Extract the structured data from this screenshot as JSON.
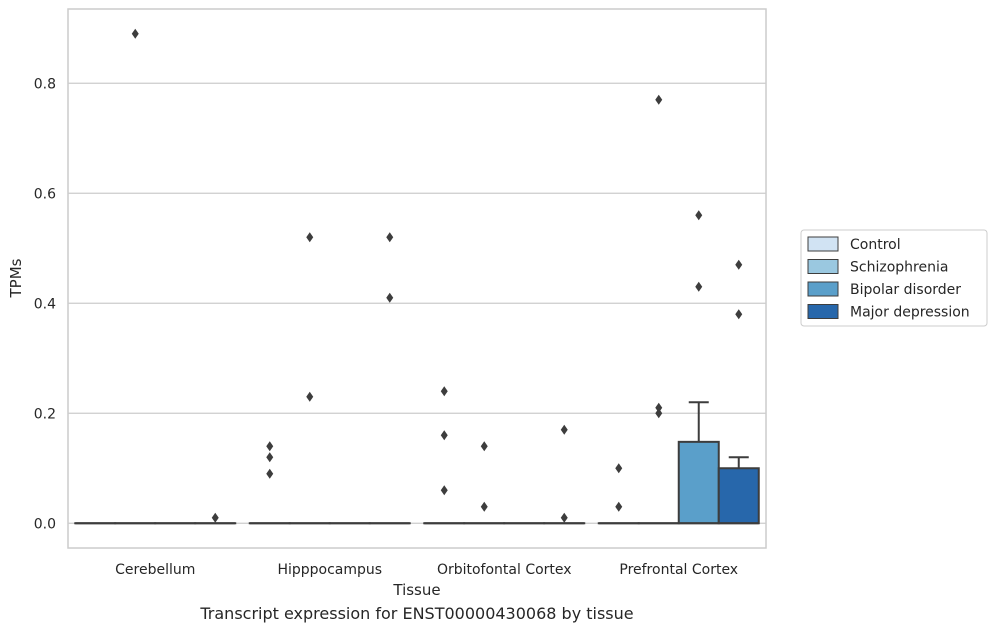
{
  "caption": "Transcript expression for ENST00000430068 by tissue",
  "chart_data": {
    "type": "box",
    "xlabel": "Tissue",
    "ylabel": "TPMs",
    "ylim": [
      -0.045,
      0.935
    ],
    "yticks": [
      0.0,
      0.2,
      0.4,
      0.6,
      0.8
    ],
    "ytick_labels": [
      "0.0",
      "0.2",
      "0.4",
      "0.6",
      "0.8"
    ],
    "grid": true,
    "legend_position": "right",
    "categories": [
      "Cerebellum",
      "Hipppocampus",
      "Orbitofontal Cortex",
      "Prefrontal Cortex"
    ],
    "series": [
      {
        "name": "Control",
        "color": "#d1e3f3",
        "boxes": [
          {
            "q1": 0,
            "median": 0,
            "q3": 0,
            "whisker_low": 0,
            "whisker_high": 0,
            "outliers": []
          },
          {
            "q1": 0,
            "median": 0,
            "q3": 0,
            "whisker_low": 0,
            "whisker_high": 0,
            "outliers": [
              0.09,
              0.12,
              0.14
            ]
          },
          {
            "q1": 0,
            "median": 0,
            "q3": 0,
            "whisker_low": 0,
            "whisker_high": 0,
            "outliers": [
              0.06,
              0.16,
              0.24
            ]
          },
          {
            "q1": 0,
            "median": 0,
            "q3": 0,
            "whisker_low": 0,
            "whisker_high": 0,
            "outliers": [
              0.03,
              0.1
            ]
          }
        ]
      },
      {
        "name": "Schizophrenia",
        "color": "#9ac8e0",
        "boxes": [
          {
            "q1": 0,
            "median": 0,
            "q3": 0,
            "whisker_low": 0,
            "whisker_high": 0,
            "outliers": [
              0.89
            ]
          },
          {
            "q1": 0,
            "median": 0,
            "q3": 0,
            "whisker_low": 0,
            "whisker_high": 0,
            "outliers": [
              0.23,
              0.52
            ]
          },
          {
            "q1": 0,
            "median": 0,
            "q3": 0,
            "whisker_low": 0,
            "whisker_high": 0,
            "outliers": [
              0.03,
              0.14
            ]
          },
          {
            "q1": 0,
            "median": 0,
            "q3": 0,
            "whisker_low": 0,
            "whisker_high": 0,
            "outliers": [
              0.2,
              0.21,
              0.77
            ]
          }
        ]
      },
      {
        "name": "Bipolar disorder",
        "color": "#5a9fca",
        "boxes": [
          {
            "q1": 0,
            "median": 0,
            "q3": 0,
            "whisker_low": 0,
            "whisker_high": 0,
            "outliers": []
          },
          {
            "q1": 0,
            "median": 0,
            "q3": 0,
            "whisker_low": 0,
            "whisker_high": 0,
            "outliers": []
          },
          {
            "q1": 0,
            "median": 0,
            "q3": 0,
            "whisker_low": 0,
            "whisker_high": 0,
            "outliers": []
          },
          {
            "q1": 0,
            "median": 0,
            "q3": 0.148,
            "whisker_low": 0,
            "whisker_high": 0.22,
            "outliers": [
              0.43,
              0.56
            ]
          }
        ]
      },
      {
        "name": "Major depression",
        "color": "#2767ab",
        "boxes": [
          {
            "q1": 0,
            "median": 0,
            "q3": 0,
            "whisker_low": 0,
            "whisker_high": 0,
            "outliers": [
              0.01
            ]
          },
          {
            "q1": 0,
            "median": 0,
            "q3": 0,
            "whisker_low": 0,
            "whisker_high": 0,
            "outliers": [
              0.41,
              0.52
            ]
          },
          {
            "q1": 0,
            "median": 0,
            "q3": 0,
            "whisker_low": 0,
            "whisker_high": 0,
            "outliers": [
              0.01,
              0.17
            ]
          },
          {
            "q1": 0,
            "median": 0,
            "q3": 0.1,
            "whisker_low": 0,
            "whisker_high": 0.12,
            "outliers": [
              0.38,
              0.47
            ]
          }
        ]
      }
    ]
  }
}
